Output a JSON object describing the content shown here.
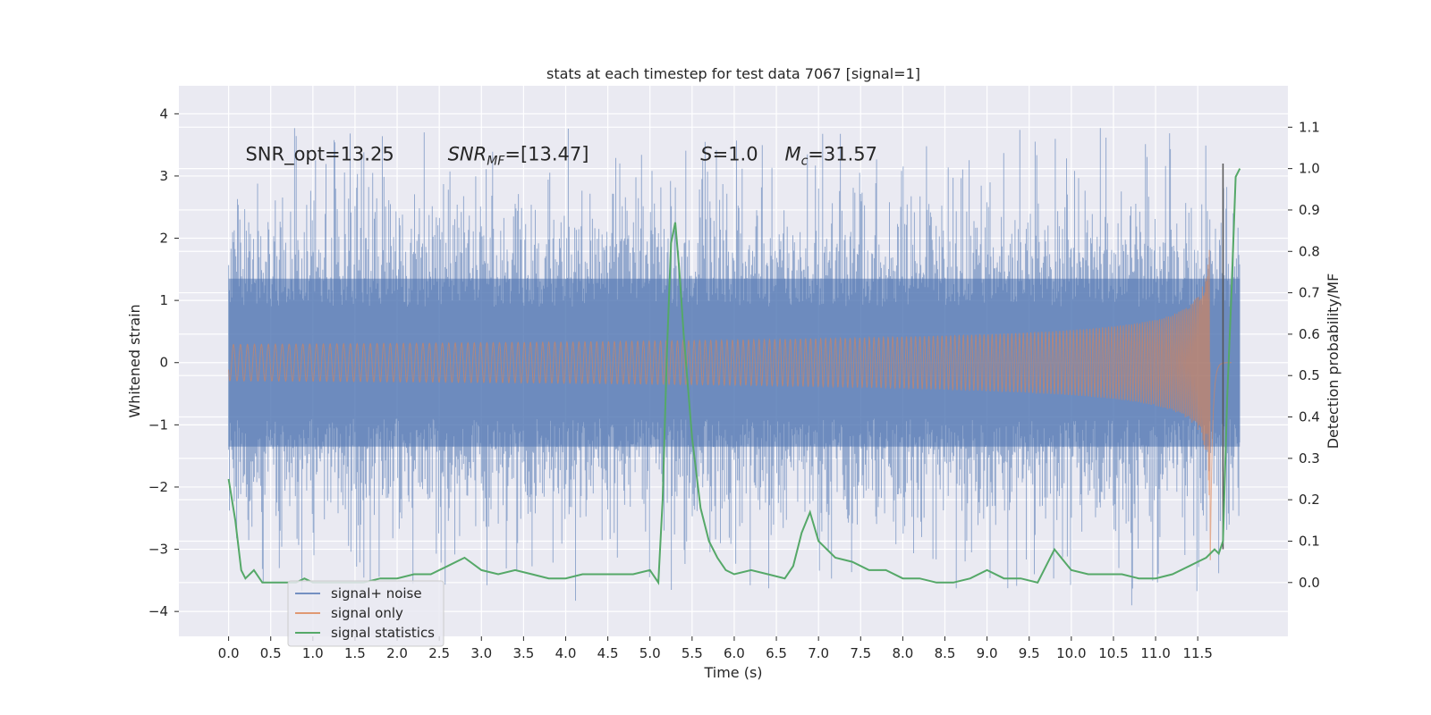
{
  "chart_data": {
    "type": "line",
    "title": "stats at each timestep for test data 7067 [signal=1]",
    "xlabel": "Time (s)",
    "ylabel": "Whitened strain",
    "y2label": "Detection probability/MF",
    "xlim": [
      -0.59,
      12.57
    ],
    "ylim": [
      -4.4,
      4.45
    ],
    "y2lim": [
      -0.13,
      1.2
    ],
    "x_ticks": [
      0.0,
      0.5,
      1.0,
      1.5,
      2.0,
      2.5,
      3.0,
      3.5,
      4.0,
      4.5,
      5.0,
      5.5,
      6.0,
      6.5,
      7.0,
      7.5,
      8.0,
      8.5,
      9.0,
      9.5,
      10.0,
      10.5,
      11.0,
      11.5
    ],
    "x_tick_labels": [
      "0.0",
      "0.5",
      "1.0",
      "1.5",
      "2.0",
      "2.5",
      "3.0",
      "3.5",
      "4.0",
      "4.5",
      "5.0",
      "5.5",
      "6.0",
      "6.5",
      "7.0",
      "7.5",
      "8.0",
      "8.5",
      "9.0",
      "9.5",
      "10.0",
      "10.5",
      "11.0",
      "11.5"
    ],
    "y_ticks": [
      -4,
      -3,
      -2,
      -1,
      0,
      1,
      2,
      3,
      4
    ],
    "y_tick_labels": [
      "−4",
      "−3",
      "−2",
      "−1",
      "0",
      "1",
      "2",
      "3",
      "4"
    ],
    "y2_ticks": [
      0.0,
      0.1,
      0.2,
      0.3,
      0.4,
      0.5,
      0.6,
      0.7,
      0.8,
      0.9,
      1.0,
      1.1
    ],
    "y2_tick_labels": [
      "0.0",
      "0.1",
      "0.2",
      "0.3",
      "0.4",
      "0.5",
      "0.6",
      "0.7",
      "0.8",
      "0.9",
      "1.0",
      "1.1"
    ],
    "grid": true,
    "legend_position": "bottom-left",
    "annotations": [
      {
        "text": "SNR_opt=13.25",
        "x": 0.2,
        "y": 3.25
      },
      {
        "text": "SNR_MF=[13.47]",
        "x": 2.6,
        "y": 3.25
      },
      {
        "text": "S=1.0",
        "x": 5.6,
        "y": 3.25
      },
      {
        "text": "M_c=31.57",
        "x": 6.6,
        "y": 3.25
      }
    ],
    "vertical_line": {
      "x": 11.8,
      "y_from": -3.0,
      "y_to": 3.2
    },
    "series": [
      {
        "name": "signal+ noise",
        "color": "#4c72b0",
        "opacity": 0.55,
        "x_range": [
          0.0,
          12.0
        ],
        "typical_band": [
          -1.35,
          1.35
        ],
        "envelope_max": 4.1,
        "envelope_min": -3.9
      },
      {
        "name": "signal only",
        "color": "#dd8452",
        "opacity": 0.6,
        "x_range": [
          0.0,
          11.9
        ],
        "merger_time": 11.65,
        "peak_amplitude": 3.2
      },
      {
        "name": "signal statistics",
        "color": "#55a868",
        "axis": "right",
        "x": [
          0.0,
          0.08,
          0.15,
          0.2,
          0.3,
          0.4,
          0.5,
          0.6,
          0.8,
          0.9,
          1.0,
          1.2,
          1.4,
          1.6,
          1.8,
          2.0,
          2.2,
          2.4,
          2.6,
          2.8,
          3.0,
          3.2,
          3.4,
          3.6,
          3.8,
          4.0,
          4.2,
          4.4,
          4.6,
          4.8,
          5.0,
          5.1,
          5.15,
          5.2,
          5.25,
          5.3,
          5.35,
          5.4,
          5.5,
          5.6,
          5.7,
          5.8,
          5.9,
          6.0,
          6.2,
          6.4,
          6.6,
          6.7,
          6.8,
          6.9,
          7.0,
          7.2,
          7.4,
          7.6,
          7.8,
          8.0,
          8.2,
          8.4,
          8.6,
          8.8,
          9.0,
          9.2,
          9.4,
          9.6,
          9.8,
          10.0,
          10.2,
          10.4,
          10.6,
          10.8,
          11.0,
          11.2,
          11.4,
          11.5,
          11.6,
          11.7,
          11.75,
          11.8,
          11.85,
          11.9,
          11.95,
          12.0
        ],
        "y": [
          0.25,
          0.15,
          0.03,
          0.01,
          0.03,
          0.0,
          0.0,
          0.0,
          0.0,
          0.01,
          0.0,
          0.0,
          0.0,
          0.0,
          0.01,
          0.01,
          0.02,
          0.02,
          0.04,
          0.06,
          0.03,
          0.02,
          0.03,
          0.02,
          0.01,
          0.01,
          0.02,
          0.02,
          0.02,
          0.02,
          0.03,
          0.0,
          0.2,
          0.55,
          0.82,
          0.87,
          0.75,
          0.6,
          0.35,
          0.18,
          0.1,
          0.06,
          0.03,
          0.02,
          0.03,
          0.02,
          0.01,
          0.04,
          0.12,
          0.17,
          0.1,
          0.06,
          0.05,
          0.03,
          0.03,
          0.01,
          0.01,
          0.0,
          0.0,
          0.01,
          0.03,
          0.01,
          0.01,
          0.0,
          0.08,
          0.03,
          0.02,
          0.02,
          0.02,
          0.01,
          0.01,
          0.02,
          0.04,
          0.05,
          0.06,
          0.08,
          0.07,
          0.1,
          0.45,
          0.7,
          0.98,
          1.0
        ]
      }
    ]
  }
}
